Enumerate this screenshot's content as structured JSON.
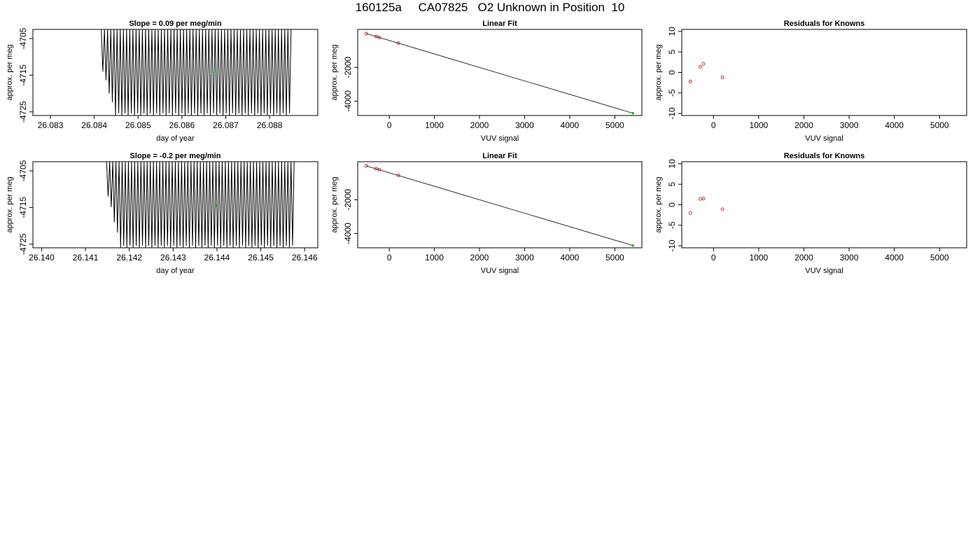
{
  "page": {
    "title": "160125a     CA07825   O2 Unknown in Position  10"
  },
  "style": {
    "line_color": "#000000",
    "known_point_color": "#b22222",
    "unknown_point_color": "#00c000",
    "axis_color": "#000000"
  },
  "chart_data": [
    {
      "id": "trace-1",
      "type": "line",
      "title": "Slope =  0.09  per meg/min",
      "xlabel": "day of year",
      "ylabel": "approx. per meg",
      "xlim": [
        26.0826,
        26.0891
      ],
      "ylim": [
        -4726.0,
        -4702.5
      ],
      "xticks": [
        26.083,
        26.084,
        26.085,
        26.086,
        26.087,
        26.088
      ],
      "xtick_labels": [
        "26.083",
        "26.084",
        "26.085",
        "26.086",
        "26.087",
        "26.088"
      ],
      "yticks": [
        -4705,
        -4715,
        -4725
      ],
      "ytick_labels": [
        "-4705",
        "-4715",
        "-4725"
      ],
      "signal": {
        "x_start": 26.08416,
        "x_end": 26.08849,
        "n_cycles": 60,
        "high": -4702.5,
        "low": -4726.0,
        "first_low": -4714.0
      },
      "highlight_point": {
        "x": 26.08672,
        "y": -4714.5
      }
    },
    {
      "id": "fit-1",
      "type": "scatter",
      "title": "Linear Fit",
      "xlabel": "VUV signal",
      "ylabel": "approx. per meg",
      "xlim": [
        -700,
        5600
      ],
      "ylim": [
        -4850,
        250
      ],
      "xticks": [
        0,
        1000,
        2000,
        3000,
        4000,
        5000
      ],
      "xtick_labels": [
        "0",
        "1000",
        "2000",
        "3000",
        "4000",
        "5000"
      ],
      "yticks": [
        -2000,
        -4000
      ],
      "ytick_labels": [
        "-2000",
        "-4000"
      ],
      "fit_line": {
        "x": [
          -510,
          5400
        ],
        "y": [
          0,
          -4715
        ]
      },
      "knowns": [
        {
          "x": -510,
          "y": 0
        },
        {
          "x": -290,
          "y": -170
        },
        {
          "x": -220,
          "y": -230
        },
        {
          "x": 200,
          "y": -560
        }
      ],
      "unknowns": [
        {
          "x": 5400,
          "y": -4715
        }
      ]
    },
    {
      "id": "resid-1",
      "type": "scatter",
      "title": "Residuals for Knowns",
      "xlabel": "VUV signal",
      "ylabel": "approx. per meg",
      "xlim": [
        -700,
        5600
      ],
      "ylim": [
        -10.5,
        10.5
      ],
      "xticks": [
        0,
        1000,
        2000,
        3000,
        4000,
        5000
      ],
      "xtick_labels": [
        "0",
        "1000",
        "2000",
        "3000",
        "4000",
        "5000"
      ],
      "yticks": [
        10,
        5,
        0,
        -5,
        -10
      ],
      "ytick_labels": [
        "10",
        "5",
        "0",
        "-5",
        "-10"
      ],
      "points": [
        {
          "x": -510,
          "y": -2.2
        },
        {
          "x": -290,
          "y": 1.4
        },
        {
          "x": -220,
          "y": 2.1
        },
        {
          "x": 200,
          "y": -1.2
        }
      ]
    },
    {
      "id": "trace-2",
      "type": "line",
      "title": "Slope =  -0.2  per meg/min",
      "xlabel": "day of year",
      "ylabel": "approx. per meg",
      "xlim": [
        26.1398,
        26.1463
      ],
      "ylim": [
        -4726.0,
        -4702.5
      ],
      "xticks": [
        26.14,
        26.141,
        26.142,
        26.143,
        26.144,
        26.145,
        26.146
      ],
      "xtick_labels": [
        "26.140",
        "26.141",
        "26.142",
        "26.143",
        "26.144",
        "26.145",
        "26.146"
      ],
      "yticks": [
        -4705,
        -4715,
        -4725
      ],
      "ytick_labels": [
        "-4705",
        "-4715",
        "-4725"
      ],
      "signal": {
        "x_start": 26.14148,
        "x_end": 26.14576,
        "n_cycles": 60,
        "high": -4702.5,
        "low": -4726.0,
        "first_low": -4712.0
      },
      "highlight_point": {
        "x": 26.14397,
        "y": -4714.5
      }
    },
    {
      "id": "fit-2",
      "type": "scatter",
      "title": "Linear Fit",
      "xlabel": "VUV signal",
      "ylabel": "approx. per meg",
      "xlim": [
        -700,
        5600
      ],
      "ylim": [
        -4850,
        250
      ],
      "xticks": [
        0,
        1000,
        2000,
        3000,
        4000,
        5000
      ],
      "xtick_labels": [
        "0",
        "1000",
        "2000",
        "3000",
        "4000",
        "5000"
      ],
      "yticks": [
        -2000,
        -4000
      ],
      "ytick_labels": [
        "-2000",
        "-4000"
      ],
      "fit_line": {
        "x": [
          -510,
          5400
        ],
        "y": [
          0,
          -4715
        ]
      },
      "knowns": [
        {
          "x": -510,
          "y": 0
        },
        {
          "x": -290,
          "y": -165
        },
        {
          "x": -220,
          "y": -225
        },
        {
          "x": 200,
          "y": -560
        }
      ],
      "unknowns": [
        {
          "x": 5400,
          "y": -4715
        }
      ]
    },
    {
      "id": "resid-2",
      "type": "scatter",
      "title": "Residuals for Knowns",
      "xlabel": "VUV signal",
      "ylabel": "approx. per meg",
      "xlim": [
        -700,
        5600
      ],
      "ylim": [
        -10.5,
        10.5
      ],
      "xticks": [
        0,
        1000,
        2000,
        3000,
        4000,
        5000
      ],
      "xtick_labels": [
        "0",
        "1000",
        "2000",
        "3000",
        "4000",
        "5000"
      ],
      "yticks": [
        10,
        5,
        0,
        -5,
        -10
      ],
      "ytick_labels": [
        "10",
        "5",
        "0",
        "-5",
        "-10"
      ],
      "points": [
        {
          "x": -510,
          "y": -2.0
        },
        {
          "x": -290,
          "y": 1.4
        },
        {
          "x": -220,
          "y": 1.5
        },
        {
          "x": 200,
          "y": -1.1
        }
      ]
    }
  ]
}
